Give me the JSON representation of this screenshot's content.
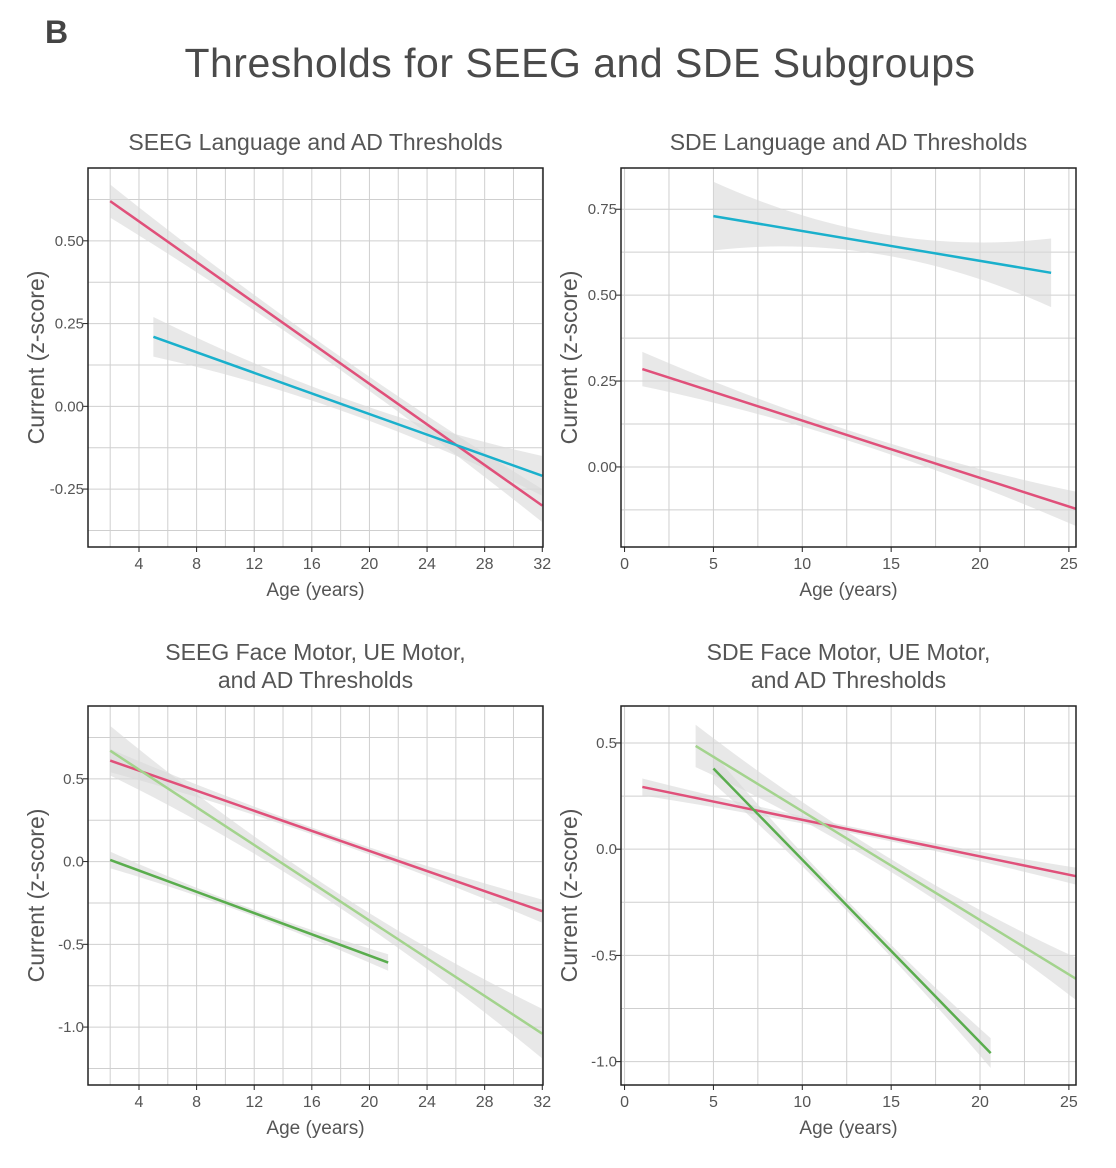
{
  "panel_letter": "B",
  "title": "Thresholds for SEEG and SDE Subgroups",
  "colors": {
    "language": "#e0507a",
    "ad": "#1ab0cc",
    "face_motor": "#5aad4e",
    "ue_motor": "#a3d38d",
    "band": "#d9d9d9",
    "grid": "#cfcfcf"
  },
  "chart_data": [
    {
      "type": "line",
      "title": [
        "SEEG Language and AD Thresholds"
      ],
      "xlabel": "Age (years)",
      "ylabel": "Current (z-score)",
      "xlim": [
        0.46,
        32.05
      ],
      "ylim": [
        -0.425,
        0.72
      ],
      "xticks": [
        4,
        8,
        12,
        16,
        20,
        24,
        28,
        32
      ],
      "xtick_labels": [
        "4",
        "8",
        "12",
        "16",
        "20",
        "24",
        "28",
        "32"
      ],
      "xminor": 2,
      "yticks": [
        -0.25,
        0,
        0.25,
        0.5
      ],
      "ytick_labels": [
        "-0.25",
        "0.00",
        "0.25",
        "0.50"
      ],
      "yminor": 0.125,
      "grid": true,
      "series": [
        {
          "name": "language",
          "color_key": "language",
          "x": [
            2,
            32
          ],
          "y": [
            0.62,
            -0.3
          ],
          "ci": [
            0.05,
            0.02
          ]
        },
        {
          "name": "ad",
          "color_key": "ad",
          "x": [
            5,
            32
          ],
          "y": [
            0.21,
            -0.21
          ],
          "ci": [
            0.06,
            0.02
          ]
        }
      ]
    },
    {
      "type": "line",
      "title": [
        "SDE Language and AD Thresholds"
      ],
      "xlabel": "Age (years)",
      "ylabel": "Current (z-score)",
      "xlim": [
        -0.2,
        25.4
      ],
      "ylim": [
        -0.233,
        0.87
      ],
      "xticks": [
        0,
        5,
        10,
        15,
        20,
        25
      ],
      "xtick_labels": [
        "0",
        "5",
        "10",
        "15",
        "20",
        "25"
      ],
      "xminor": 2.5,
      "yticks": [
        0,
        0.25,
        0.5,
        0.75
      ],
      "ytick_labels": [
        "0.00",
        "0.25",
        "0.50",
        "0.75"
      ],
      "yminor": 0.125,
      "grid": true,
      "series": [
        {
          "name": "ad",
          "color_key": "ad",
          "x": [
            5,
            24
          ],
          "y": [
            0.73,
            0.565
          ],
          "ci": [
            0.1,
            0.03
          ]
        },
        {
          "name": "language",
          "color_key": "language",
          "x": [
            1,
            25.4
          ],
          "y": [
            0.285,
            -0.122
          ],
          "ci": [
            0.05,
            0.015
          ]
        }
      ]
    },
    {
      "type": "line",
      "title": [
        "SEEG Face Motor, UE Motor,",
        "and AD Thresholds"
      ],
      "xlabel": "Age (years)",
      "ylabel": "Current (z-score)",
      "xlim": [
        0.46,
        32.05
      ],
      "ylim": [
        -1.35,
        0.94
      ],
      "xticks": [
        4,
        8,
        12,
        16,
        20,
        24,
        28,
        32
      ],
      "xtick_labels": [
        "4",
        "8",
        "12",
        "16",
        "20",
        "24",
        "28",
        "32"
      ],
      "xminor": 2,
      "yticks": [
        -1.0,
        -0.5,
        0,
        0.5
      ],
      "ytick_labels": [
        "-1.0",
        "-0.5",
        "0.0",
        "0.5"
      ],
      "yminor": 0.25,
      "grid": true,
      "series": [
        {
          "name": "language",
          "color_key": "language",
          "x": [
            2,
            32
          ],
          "y": [
            0.61,
            -0.3
          ],
          "ci": [
            0.07,
            0.02
          ]
        },
        {
          "name": "ue_motor",
          "color_key": "ue_motor",
          "x": [
            2,
            32
          ],
          "y": [
            0.67,
            -1.04
          ],
          "ci": [
            0.15,
            0.04
          ]
        },
        {
          "name": "face_motor",
          "color_key": "face_motor",
          "x": [
            2,
            21.3
          ],
          "y": [
            0.01,
            -0.61
          ],
          "ci": [
            0.05,
            0.02
          ]
        }
      ]
    },
    {
      "type": "line",
      "title": [
        "SDE Face Motor, UE Motor,",
        "and AD Thresholds"
      ],
      "xlabel": "Age (years)",
      "ylabel": "Current (z-score)",
      "xlim": [
        -0.2,
        25.4
      ],
      "ylim": [
        -1.11,
        0.674
      ],
      "xticks": [
        0,
        5,
        10,
        15,
        20,
        25
      ],
      "xtick_labels": [
        "0",
        "5",
        "10",
        "15",
        "20",
        "25"
      ],
      "xminor": 2.5,
      "yticks": [
        -1.0,
        -0.5,
        0,
        0.5
      ],
      "ytick_labels": [
        "-1.0",
        "-0.5",
        "0.0",
        "0.5"
      ],
      "yminor": 0.25,
      "grid": true,
      "series": [
        {
          "name": "language",
          "color_key": "language",
          "x": [
            1,
            25.4
          ],
          "y": [
            0.293,
            -0.127
          ],
          "ci": [
            0.04,
            0.015
          ]
        },
        {
          "name": "ue_motor",
          "color_key": "ue_motor",
          "x": [
            4,
            25.4
          ],
          "y": [
            0.486,
            -0.61
          ],
          "ci": [
            0.1,
            0.03
          ]
        },
        {
          "name": "face_motor",
          "color_key": "face_motor",
          "x": [
            5,
            20.6
          ],
          "y": [
            0.38,
            -0.96
          ],
          "ci": [
            0.07,
            0.025
          ]
        }
      ]
    }
  ]
}
